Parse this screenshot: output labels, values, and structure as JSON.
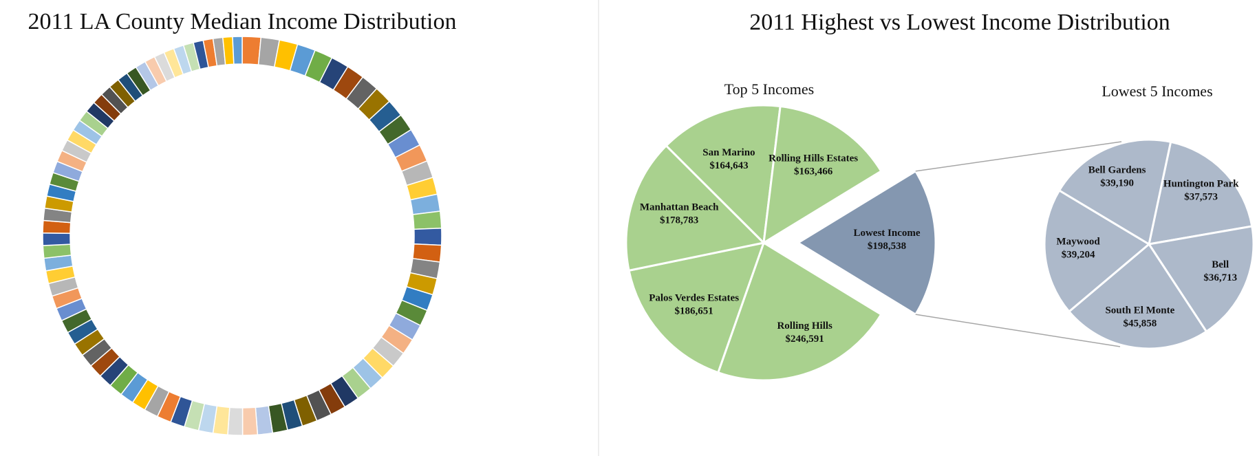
{
  "chart_data": [
    {
      "type": "pie",
      "variant": "doughnut",
      "title": "2011 LA County Median Income Distribution",
      "slice_count": 88,
      "palette": [
        "#ED7D31",
        "#A5A5A5",
        "#FFC000",
        "#5B9BD5",
        "#70AD47",
        "#264478",
        "#9E480E",
        "#636363",
        "#997300",
        "#255E91",
        "#43682B",
        "#698ED0",
        "#F1975A",
        "#B7B7B7",
        "#FFCD33",
        "#7CAFDD",
        "#8CC168",
        "#335AA1",
        "#D26012",
        "#848484",
        "#CC9A00",
        "#327DC2",
        "#5A8A39",
        "#8FAADC",
        "#F4B183",
        "#C9C9C9",
        "#FFD966",
        "#9DC3E6",
        "#A9D18E",
        "#203864",
        "#843C0C",
        "#525252",
        "#7F6000",
        "#1F4E79",
        "#385723",
        "#B4C7E7",
        "#F8CBAD",
        "#DBDBDB",
        "#FFE699",
        "#BDD7EE",
        "#C5E0B4",
        "#2F5597"
      ],
      "legend": "none"
    },
    {
      "type": "pie",
      "variant": "pie-of-pie",
      "title": "2011 Highest vs Lowest Income Distribution",
      "groups": [
        {
          "name": "Top 5 Incomes",
          "color": "#A9D18E",
          "slices": [
            {
              "label": "Rolling Hills",
              "value": 246591,
              "display": "$246,591"
            },
            {
              "label": "Palos Verdes Estates",
              "value": 186651,
              "display": "$186,651"
            },
            {
              "label": "Manhattan Beach",
              "value": 178783,
              "display": "$178,783"
            },
            {
              "label": "San Marino",
              "value": 164643,
              "display": "$164,643"
            },
            {
              "label": "Rolling Hills Estates",
              "value": 163466,
              "display": "$163,466"
            }
          ]
        },
        {
          "name": "Lowest 5 Incomes",
          "color": "#ADB9CA",
          "aggregate": {
            "label": "Lowest Income",
            "value": 198538,
            "display": "$198,538",
            "color": "#8497B0"
          },
          "slices": [
            {
              "label": "Huntington Park",
              "value": 37573,
              "display": "$37,573"
            },
            {
              "label": "Bell",
              "value": 36713,
              "display": "$36,713"
            },
            {
              "label": "South El Monte",
              "value": 45858,
              "display": "$45,858"
            },
            {
              "label": "Maywood",
              "value": 39204,
              "display": "$39,204"
            },
            {
              "label": "Bell Gardens",
              "value": 39190,
              "display": "$39,190"
            }
          ]
        }
      ],
      "legend": "none"
    }
  ]
}
